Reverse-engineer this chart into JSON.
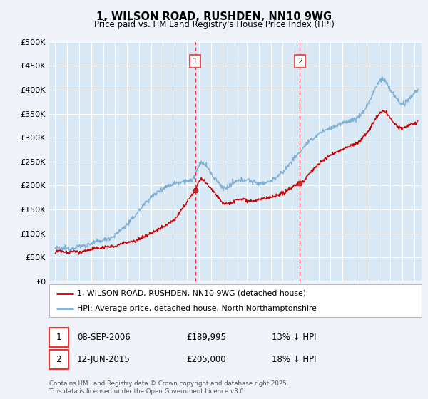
{
  "title": "1, WILSON ROAD, RUSHDEN, NN10 9WG",
  "subtitle": "Price paid vs. HM Land Registry's House Price Index (HPI)",
  "legend_line1": "1, WILSON ROAD, RUSHDEN, NN10 9WG (detached house)",
  "legend_line2": "HPI: Average price, detached house, North Northamptonshire",
  "footer": "Contains HM Land Registry data © Crown copyright and database right 2025.\nThis data is licensed under the Open Government Licence v3.0.",
  "sale1_date": "08-SEP-2006",
  "sale1_price": "£189,995",
  "sale1_hpi": "13% ↓ HPI",
  "sale2_date": "12-JUN-2015",
  "sale2_price": "£205,000",
  "sale2_hpi": "18% ↓ HPI",
  "sale1_year": 2006.7,
  "sale1_value": 189995,
  "sale2_year": 2015.44,
  "sale2_value": 205000,
  "ylim": [
    0,
    500000
  ],
  "yticks": [
    0,
    50000,
    100000,
    150000,
    200000,
    250000,
    300000,
    350000,
    400000,
    450000,
    500000
  ],
  "background_color": "#f0f4fa",
  "plot_bg_color": "#d8e8f4",
  "grid_color": "#ffffff",
  "red_line_color": "#cc0000",
  "blue_line_color": "#7aaed6",
  "vline_color": "#ee3333",
  "title_color": "#000000"
}
